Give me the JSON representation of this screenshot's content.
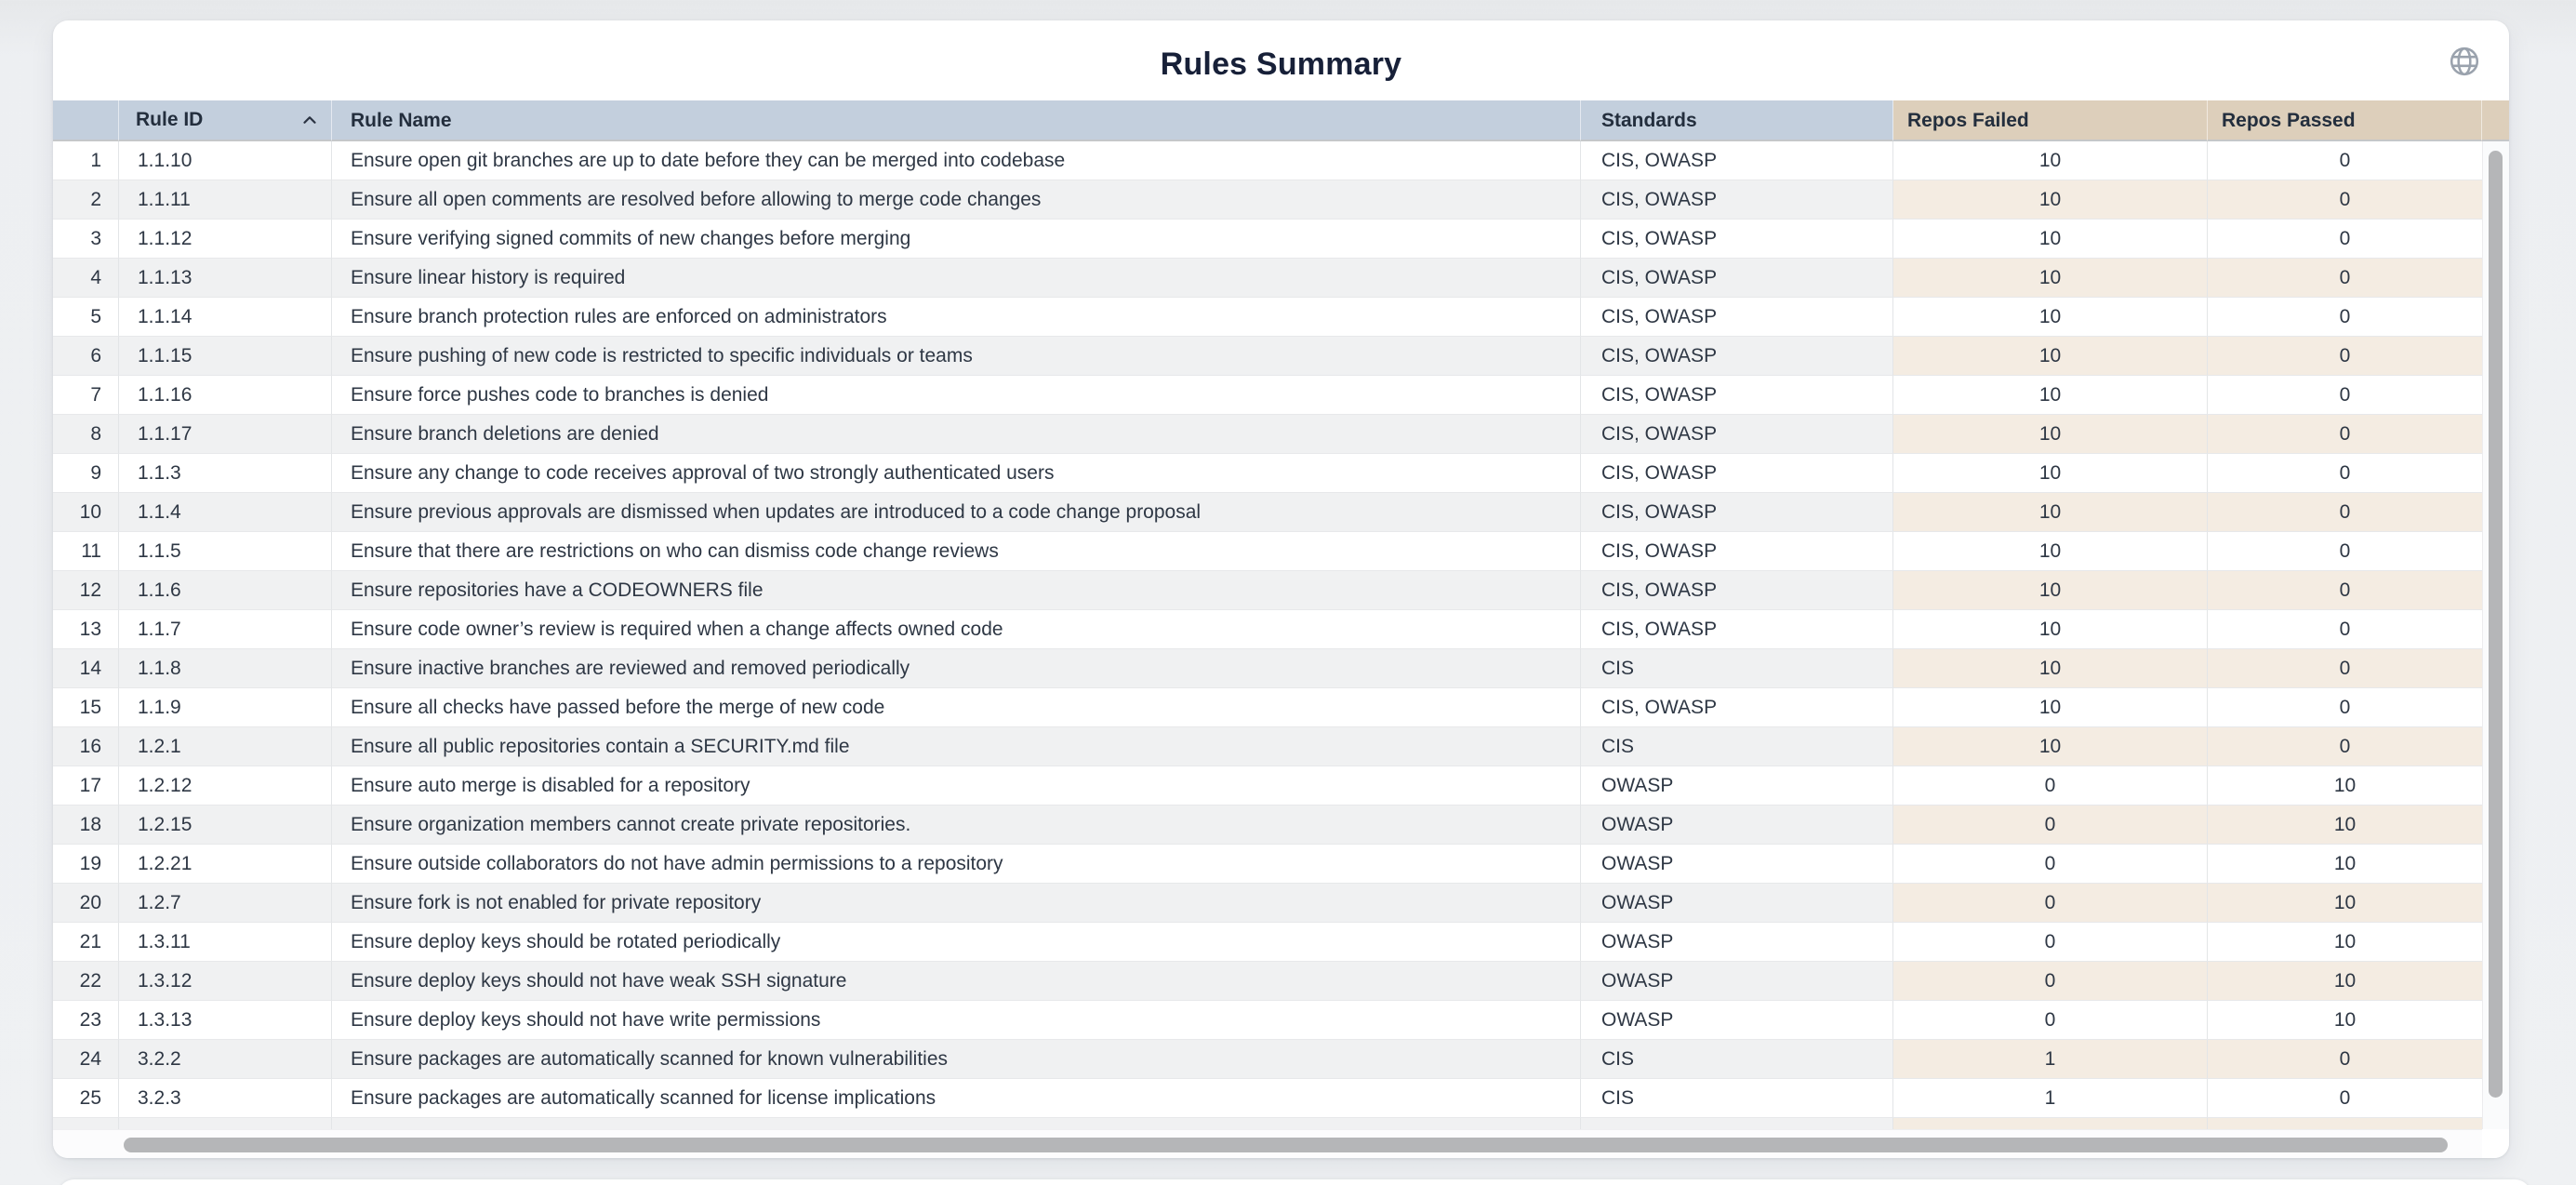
{
  "header": {
    "title": "Rules Summary"
  },
  "icons": {
    "globe": "globe-icon",
    "sort": "chevron-up-icon"
  },
  "colors": {
    "header_blue": "#c3cfdd",
    "header_tan": "#ddcfbb",
    "stripe_gray": "#f0f1f2",
    "stripe_tan": "#f4ece2",
    "title_text": "#172038",
    "row_text": "#2e3744",
    "scrollbar_thumb": "#b5b6b8"
  },
  "table": {
    "headers": {
      "rule_id": "Rule ID",
      "rule_name": "Rule Name",
      "standards": "Standards",
      "repos_failed": "Repos Failed",
      "repos_passed": "Repos Passed"
    },
    "sort": {
      "column": "rule_id",
      "direction": "ascending"
    },
    "rows": [
      {
        "row_number": 1,
        "rule_id": "1.1.10",
        "rule_name": "Ensure open git branches are up to date before they can be merged into codebase",
        "standards": "CIS, OWASP",
        "repos_failed": 10,
        "repos_passed": 0
      },
      {
        "row_number": 2,
        "rule_id": "1.1.11",
        "rule_name": "Ensure all open comments are resolved before allowing to merge code changes",
        "standards": "CIS, OWASP",
        "repos_failed": 10,
        "repos_passed": 0
      },
      {
        "row_number": 3,
        "rule_id": "1.1.12",
        "rule_name": "Ensure verifying signed commits of new changes before merging",
        "standards": "CIS, OWASP",
        "repos_failed": 10,
        "repos_passed": 0
      },
      {
        "row_number": 4,
        "rule_id": "1.1.13",
        "rule_name": "Ensure linear history is required",
        "standards": "CIS, OWASP",
        "repos_failed": 10,
        "repos_passed": 0
      },
      {
        "row_number": 5,
        "rule_id": "1.1.14",
        "rule_name": "Ensure branch protection rules are enforced on administrators",
        "standards": "CIS, OWASP",
        "repos_failed": 10,
        "repos_passed": 0
      },
      {
        "row_number": 6,
        "rule_id": "1.1.15",
        "rule_name": "Ensure pushing of new code is restricted to specific individuals or teams",
        "standards": "CIS, OWASP",
        "repos_failed": 10,
        "repos_passed": 0
      },
      {
        "row_number": 7,
        "rule_id": "1.1.16",
        "rule_name": "Ensure force pushes code to branches is denied",
        "standards": "CIS, OWASP",
        "repos_failed": 10,
        "repos_passed": 0
      },
      {
        "row_number": 8,
        "rule_id": "1.1.17",
        "rule_name": "Ensure branch deletions are denied",
        "standards": "CIS, OWASP",
        "repos_failed": 10,
        "repos_passed": 0
      },
      {
        "row_number": 9,
        "rule_id": "1.1.3",
        "rule_name": "Ensure any change to code receives approval of two strongly authenticated users",
        "standards": "CIS, OWASP",
        "repos_failed": 10,
        "repos_passed": 0
      },
      {
        "row_number": 10,
        "rule_id": "1.1.4",
        "rule_name": "Ensure previous approvals are dismissed when updates are introduced to a code change proposal",
        "standards": "CIS, OWASP",
        "repos_failed": 10,
        "repos_passed": 0
      },
      {
        "row_number": 11,
        "rule_id": "1.1.5",
        "rule_name": "Ensure that there are restrictions on who can dismiss code change reviews",
        "standards": "CIS, OWASP",
        "repos_failed": 10,
        "repos_passed": 0
      },
      {
        "row_number": 12,
        "rule_id": "1.1.6",
        "rule_name": "Ensure repositories have a CODEOWNERS file",
        "standards": "CIS, OWASP",
        "repos_failed": 10,
        "repos_passed": 0
      },
      {
        "row_number": 13,
        "rule_id": "1.1.7",
        "rule_name": "Ensure code owner’s review is required when a change affects owned code",
        "standards": "CIS, OWASP",
        "repos_failed": 10,
        "repos_passed": 0
      },
      {
        "row_number": 14,
        "rule_id": "1.1.8",
        "rule_name": "Ensure inactive branches are reviewed and removed periodically",
        "standards": "CIS",
        "repos_failed": 10,
        "repos_passed": 0
      },
      {
        "row_number": 15,
        "rule_id": "1.1.9",
        "rule_name": "Ensure all checks have passed before the merge of new code",
        "standards": "CIS, OWASP",
        "repos_failed": 10,
        "repos_passed": 0
      },
      {
        "row_number": 16,
        "rule_id": "1.2.1",
        "rule_name": "Ensure all public repositories contain a SECURITY.md file",
        "standards": "CIS",
        "repos_failed": 10,
        "repos_passed": 0
      },
      {
        "row_number": 17,
        "rule_id": "1.2.12",
        "rule_name": "Ensure auto merge is disabled for a repository",
        "standards": "OWASP",
        "repos_failed": 0,
        "repos_passed": 10
      },
      {
        "row_number": 18,
        "rule_id": "1.2.15",
        "rule_name": "Ensure organization members cannot create private repositories.",
        "standards": "OWASP",
        "repos_failed": 0,
        "repos_passed": 10
      },
      {
        "row_number": 19,
        "rule_id": "1.2.21",
        "rule_name": "Ensure outside collaborators do not have admin permissions to a repository",
        "standards": "OWASP",
        "repos_failed": 0,
        "repos_passed": 10
      },
      {
        "row_number": 20,
        "rule_id": "1.2.7",
        "rule_name": "Ensure fork is not enabled for private repository",
        "standards": "OWASP",
        "repos_failed": 0,
        "repos_passed": 10
      },
      {
        "row_number": 21,
        "rule_id": "1.3.11",
        "rule_name": "Ensure deploy keys should be rotated periodically",
        "standards": "OWASP",
        "repos_failed": 0,
        "repos_passed": 10
      },
      {
        "row_number": 22,
        "rule_id": "1.3.12",
        "rule_name": "Ensure deploy keys should not have weak SSH signature",
        "standards": "OWASP",
        "repos_failed": 0,
        "repos_passed": 10
      },
      {
        "row_number": 23,
        "rule_id": "1.3.13",
        "rule_name": "Ensure deploy keys should not have write permissions",
        "standards": "OWASP",
        "repos_failed": 0,
        "repos_passed": 10
      },
      {
        "row_number": 24,
        "rule_id": "3.2.2",
        "rule_name": "Ensure packages are automatically scanned for known vulnerabilities",
        "standards": "CIS",
        "repos_failed": 1,
        "repos_passed": 0
      },
      {
        "row_number": 25,
        "rule_id": "3.2.3",
        "rule_name": "Ensure packages are automatically scanned for license implications",
        "standards": "CIS",
        "repos_failed": 1,
        "repos_passed": 0
      }
    ]
  }
}
